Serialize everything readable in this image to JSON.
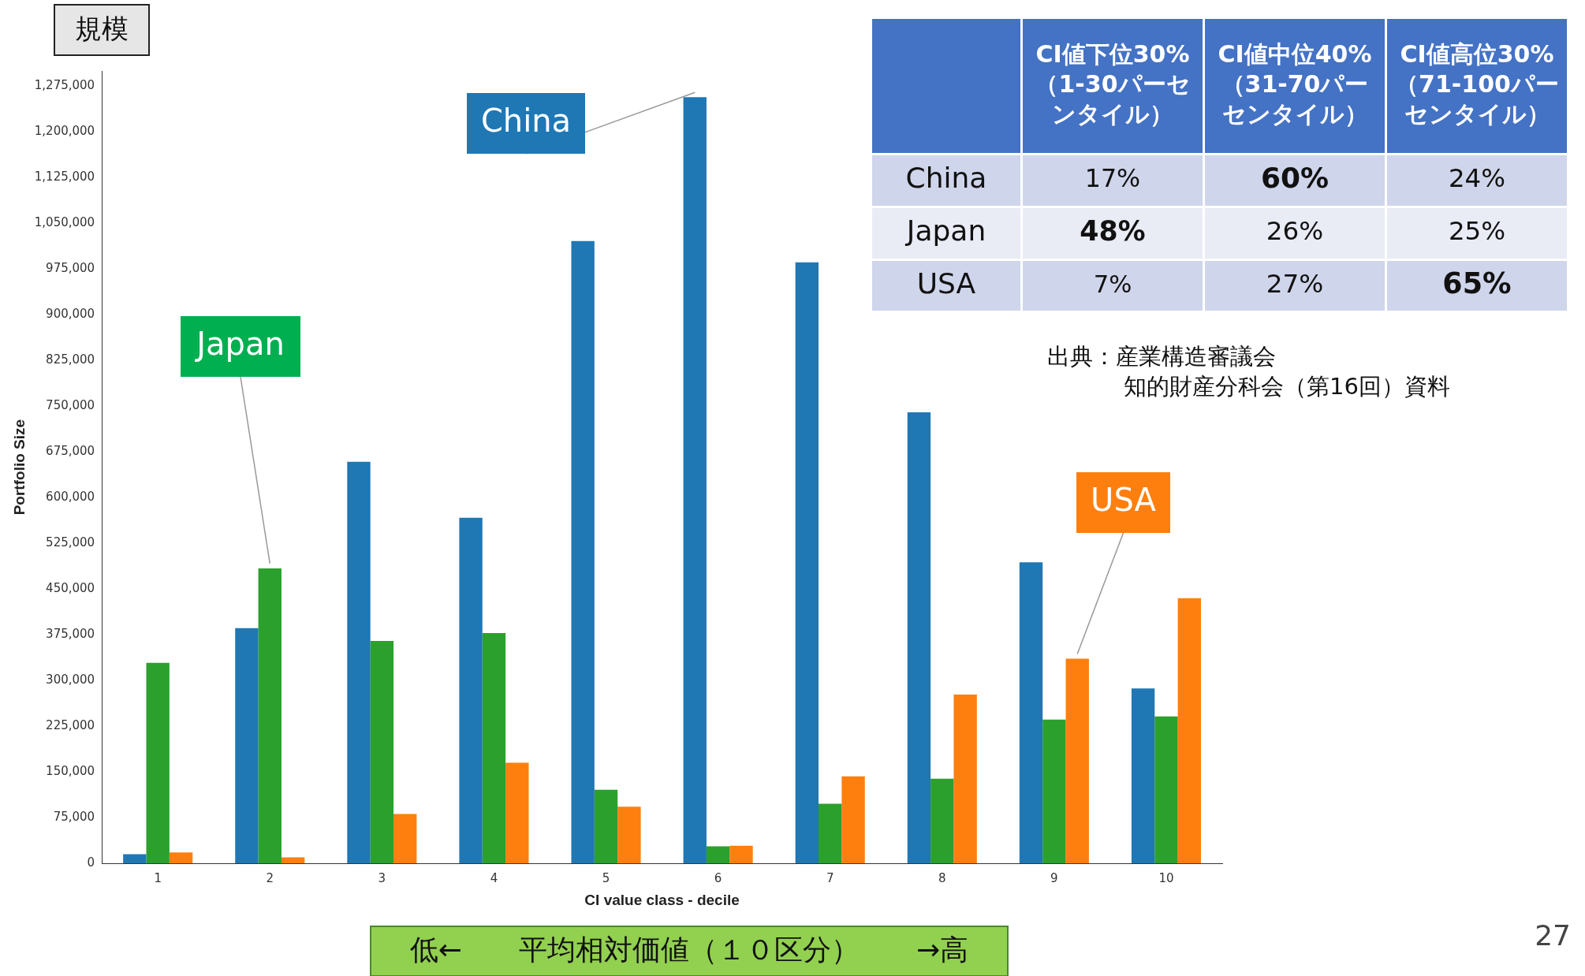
{
  "chart_data": [
    {
      "type": "bar",
      "xlabel": "CI value class - decile",
      "ylabel": "Portfolio Size",
      "categories": [
        "1",
        "2",
        "3",
        "4",
        "5",
        "6",
        "7",
        "8",
        "9",
        "10"
      ],
      "series": [
        {
          "name": "China",
          "color": "#1f77b4",
          "values": [
            15000,
            386000,
            659000,
            567000,
            1021000,
            1257000,
            986000,
            740000,
            494000,
            287000
          ]
        },
        {
          "name": "Japan",
          "color": "#2ca02c",
          "values": [
            329000,
            484000,
            365000,
            378000,
            121000,
            28000,
            98000,
            139000,
            236000,
            241000
          ]
        },
        {
          "name": "USA",
          "color": "#ff7f0e",
          "values": [
            18000,
            10000,
            81000,
            165000,
            93000,
            29000,
            143000,
            277000,
            336000,
            435000
          ]
        }
      ],
      "ylim": [
        0,
        1300000
      ],
      "yticks": [
        0,
        {
          "value": 75000,
          "label": "75,000"
        },
        {
          "value": 150000,
          "label": "150,000"
        },
        {
          "value": 225000,
          "label": "225,000"
        },
        {
          "value": 300000,
          "label": "300,000"
        },
        {
          "value": 375000,
          "label": "375,000"
        },
        {
          "value": 450000,
          "label": "450,000"
        },
        {
          "value": 525000,
          "label": "525,000"
        },
        {
          "value": 600000,
          "label": "600,000"
        },
        {
          "value": 675000,
          "label": "675,000"
        },
        {
          "value": 750000,
          "label": "750,000"
        },
        {
          "value": 825000,
          "label": "825,000"
        },
        {
          "value": 900000,
          "label": "900,000"
        },
        {
          "value": 975000,
          "label": "975,000"
        },
        {
          "value": 1050000,
          "label": "1,050,000"
        },
        {
          "value": 1125000,
          "label": "1,125,000"
        },
        {
          "value": 1200000,
          "label": "1,200,000"
        },
        {
          "value": 1275000,
          "label": "1,275,000"
        }
      ],
      "grid": false,
      "legend": false,
      "annotations": [
        "規模",
        "低←　　平均相対価値（１０区分）　　→高",
        "出典：産業構造審議会",
        "知的財産分科会（第16回）資料",
        "27"
      ]
    },
    {
      "type": "heatmap",
      "categories": [
        "CI値下位30%（1-30パーセンタイル）",
        "CI値中位40%（31-70パーセンタイル）",
        "CI値高位30%（71-100パーセンタイル）"
      ],
      "y_categories": [
        "China",
        "Japan",
        "USA"
      ],
      "cells": [
        [
          17,
          60,
          24
        ],
        [
          48,
          26,
          25
        ],
        [
          7,
          27,
          65
        ]
      ],
      "cell_labels": [
        [
          "17%",
          "60%",
          "24%"
        ],
        [
          "48%",
          "26%",
          "25%"
        ],
        [
          "7%",
          "27%",
          "65%"
        ]
      ]
    }
  ]
}
